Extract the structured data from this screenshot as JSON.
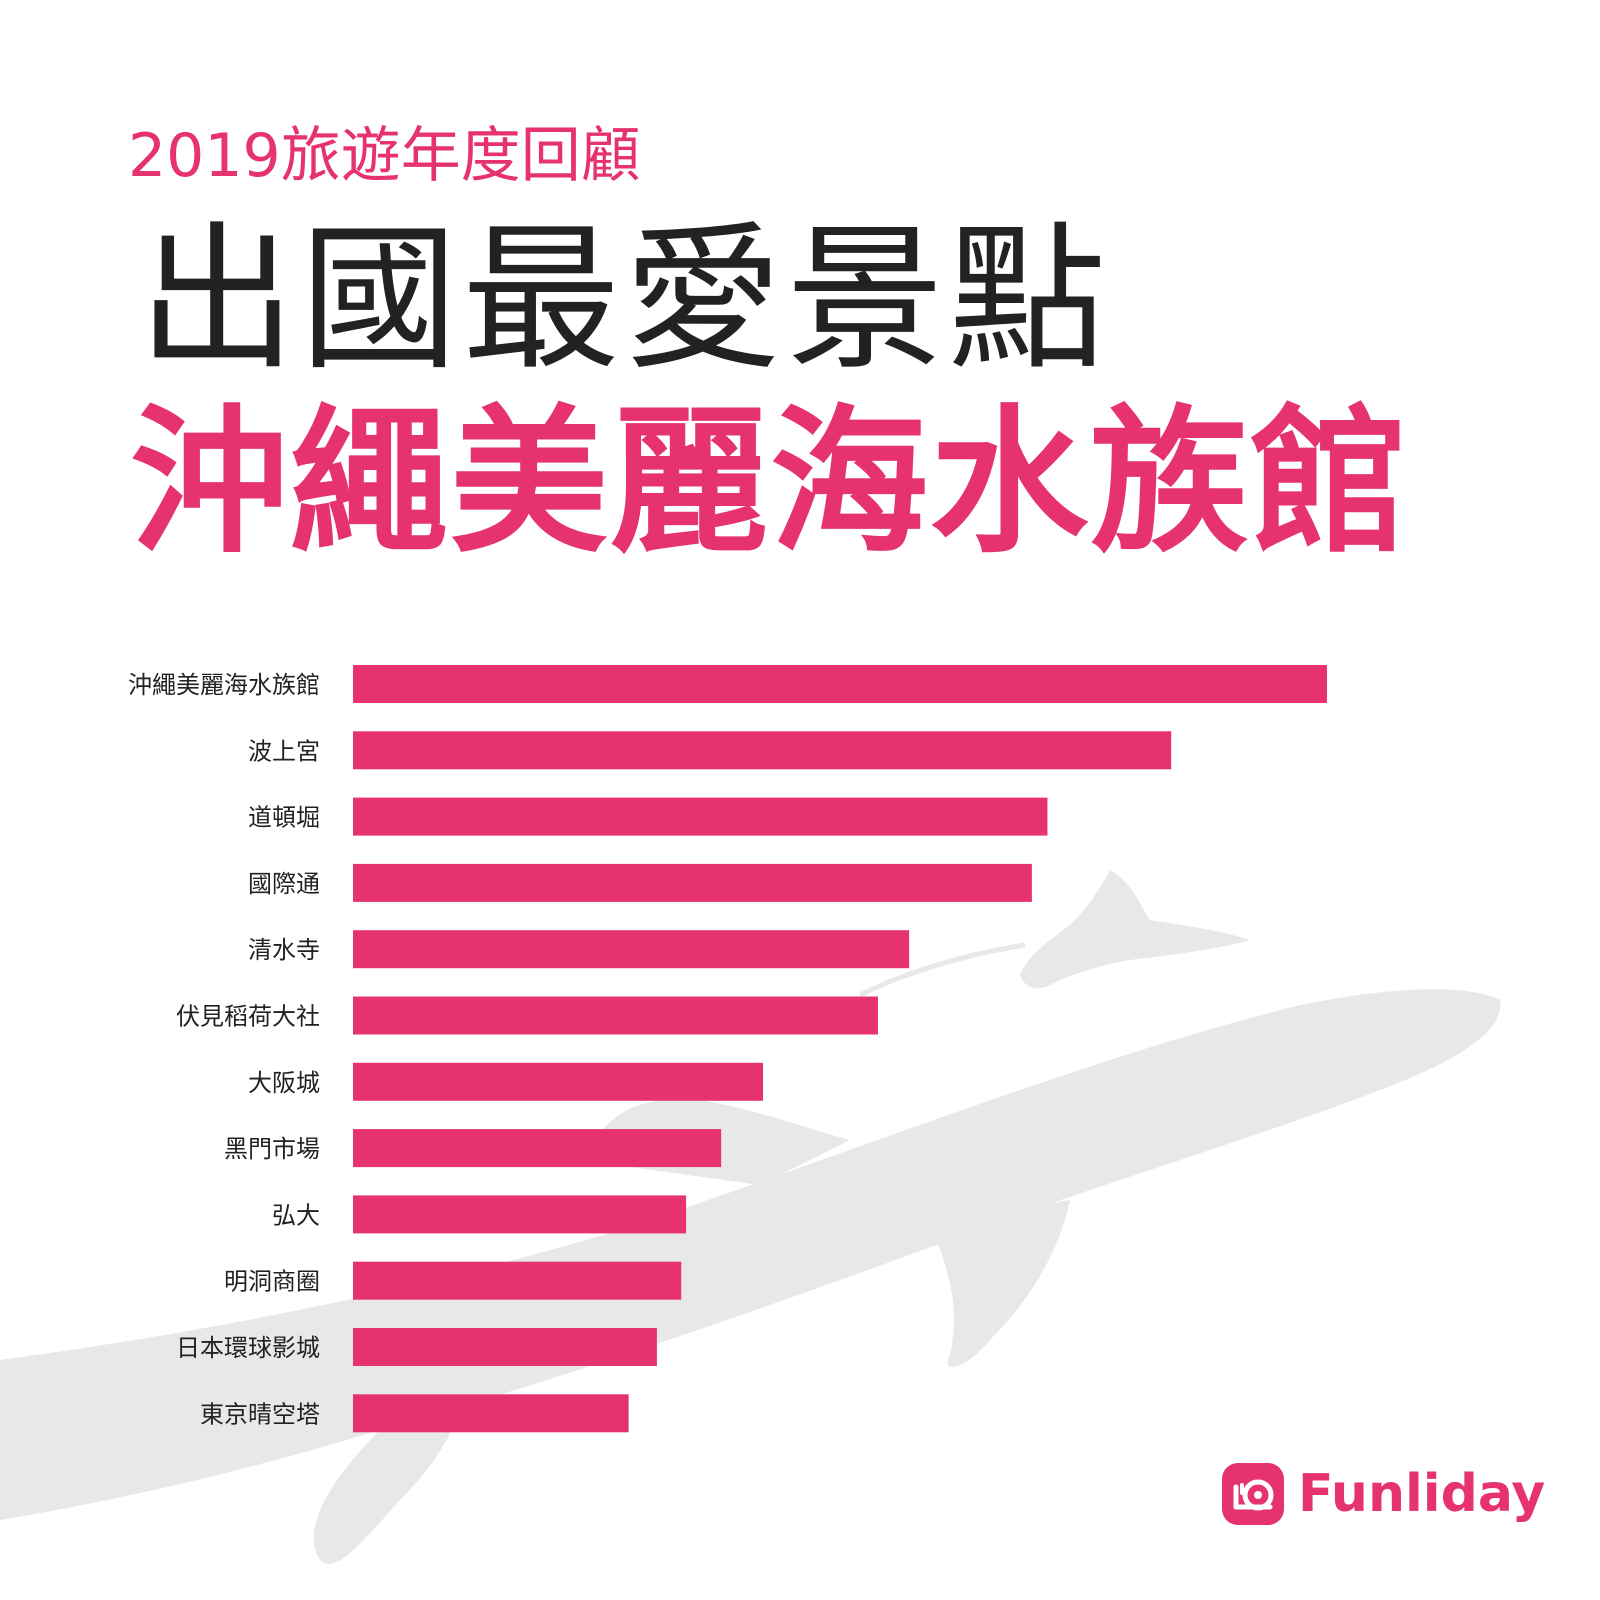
{
  "header": {
    "subtitle": "2019旅遊年度回顧",
    "headline": "出國最愛景點",
    "highlight": "沖繩美麗海水族館"
  },
  "brand": {
    "name": "Funliday",
    "color": "#e6336f",
    "logo_icon": "snail-icon"
  },
  "background": {
    "icon": "whale-shark-icon",
    "color": "#e8e8e8"
  },
  "chart_data": {
    "type": "bar",
    "orientation": "horizontal",
    "categories": [
      "沖繩美麗海水族館",
      "波上宮",
      "道頓堀",
      "國際通",
      "清水寺",
      "伏見稻荷大社",
      "大阪城",
      "黑門市場",
      "弘大",
      "明洞商圈",
      "日本環球影城",
      "東京晴空塔"
    ],
    "values": [
      100,
      84,
      71.3,
      69.7,
      57.1,
      53.9,
      42.1,
      37.8,
      34.2,
      33.7,
      31.2,
      28.3
    ],
    "title": "",
    "xlabel": "",
    "ylabel": "",
    "xlim": [
      0,
      100
    ],
    "grid": false,
    "legend": "none",
    "bar_color": "#e6336f"
  }
}
